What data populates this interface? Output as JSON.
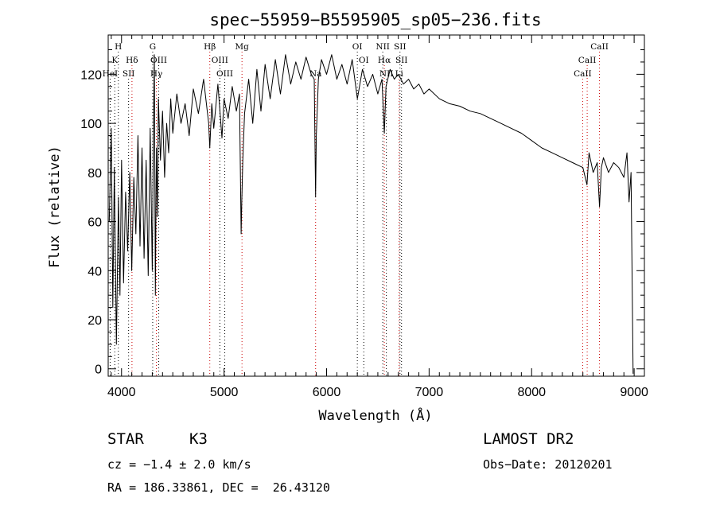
{
  "header": {
    "title": "spec−55959−B5595905_sp05−236.fits"
  },
  "info": {
    "object_class": "STAR",
    "subclass": "K3",
    "survey": "LAMOST DR2",
    "cz": "cz = −1.4 ± 2.0 km/s",
    "obs_date": "Obs−Date: 20120201",
    "coords": "RA = 186.33861, DEC =  26.43120"
  },
  "chart_data": {
    "type": "line",
    "title": "spec−55959−B5595905_sp05−236.fits",
    "xlabel": "Wavelength (Å)",
    "ylabel": "Flux (relative)",
    "xlim": [
      3870,
      9100
    ],
    "ylim": [
      -3,
      136
    ],
    "xticks": [
      4000,
      5000,
      6000,
      7000,
      8000,
      9000
    ],
    "yticks": [
      0,
      20,
      40,
      60,
      80,
      100,
      120
    ],
    "grid": false,
    "series": [
      {
        "x": [
          3880,
          3900,
          3915,
          3930,
          3950,
          3970,
          3985,
          4000,
          4020,
          4040,
          4060,
          4080,
          4100,
          4120,
          4140,
          4160,
          4180,
          4200,
          4220,
          4240,
          4260,
          4280,
          4300,
          4310,
          4320,
          4330,
          4340,
          4350,
          4360,
          4380,
          4400,
          4420,
          4440,
          4460,
          4480,
          4500,
          4540,
          4580,
          4620,
          4660,
          4700,
          4750,
          4800,
          4850,
          4861,
          4880,
          4900,
          4940,
          4980,
          5000,
          5040,
          5080,
          5120,
          5150,
          5167,
          5173,
          5183,
          5200,
          5240,
          5280,
          5320,
          5360,
          5400,
          5450,
          5500,
          5550,
          5600,
          5650,
          5700,
          5750,
          5800,
          5850,
          5880,
          5893,
          5900,
          5920,
          5950,
          6000,
          6050,
          6100,
          6150,
          6200,
          6250,
          6300,
          6350,
          6400,
          6450,
          6500,
          6540,
          6563,
          6580,
          6620,
          6660,
          6700,
          6750,
          6800,
          6850,
          6900,
          6950,
          7000,
          7100,
          7200,
          7300,
          7400,
          7500,
          7600,
          7700,
          7800,
          7900,
          8000,
          8100,
          8200,
          8300,
          8400,
          8500,
          8540,
          8560,
          8600,
          8640,
          8662,
          8680,
          8700,
          8750,
          8800,
          8850,
          8900,
          8930,
          8950,
          8970,
          8990
        ],
        "y": [
          60,
          98,
          25,
          82,
          10,
          70,
          30,
          85,
          35,
          72,
          48,
          80,
          40,
          78,
          55,
          95,
          50,
          90,
          45,
          85,
          38,
          98,
          40,
          92,
          128,
          30,
          90,
          62,
          110,
          85,
          105,
          78,
          100,
          88,
          110,
          96,
          112,
          100,
          108,
          95,
          114,
          104,
          118,
          100,
          90,
          108,
          98,
          116,
          94,
          110,
          102,
          115,
          105,
          112,
          55,
          68,
          85,
          104,
          118,
          100,
          122,
          105,
          124,
          110,
          126,
          112,
          128,
          116,
          125,
          118,
          127,
          120,
          118,
          70,
          95,
          118,
          126,
          120,
          128,
          118,
          124,
          116,
          126,
          110,
          122,
          115,
          120,
          112,
          118,
          96,
          115,
          122,
          118,
          120,
          116,
          118,
          114,
          116,
          112,
          114,
          110,
          108,
          107,
          105,
          104,
          102,
          100,
          98,
          96,
          93,
          90,
          88,
          86,
          84,
          82,
          75,
          88,
          80,
          84,
          66,
          82,
          86,
          80,
          84,
          82,
          78,
          88,
          68,
          80,
          -2
        ]
      }
    ],
    "spectral_lines": [
      {
        "label": "H",
        "x": 3969,
        "row": 0,
        "color": "#000"
      },
      {
        "label": "K",
        "x": 3934,
        "row": 1,
        "color": "#000"
      },
      {
        "label": "HeI",
        "x": 3889,
        "row": 2,
        "color": "#000"
      },
      {
        "label": "Hδ",
        "x": 4102,
        "row": 1,
        "color": "#c00"
      },
      {
        "label": "SII",
        "x": 4069,
        "row": 2,
        "color": "#000"
      },
      {
        "label": "G",
        "x": 4304,
        "row": 0,
        "color": "#000"
      },
      {
        "label": "OIII",
        "x": 4363,
        "row": 1,
        "color": "#000"
      },
      {
        "label": "Hγ",
        "x": 4340,
        "row": 2,
        "color": "#c00"
      },
      {
        "label": "Hβ",
        "x": 4861,
        "row": 0,
        "color": "#c00"
      },
      {
        "label": "OIII",
        "x": 4959,
        "row": 1,
        "color": "#000"
      },
      {
        "label": "OIII",
        "x": 5007,
        "row": 2,
        "color": "#000"
      },
      {
        "label": "Mg",
        "x": 5175,
        "row": 0,
        "color": "#c00"
      },
      {
        "label": "Na",
        "x": 5893,
        "row": 2,
        "color": "#c00"
      },
      {
        "label": "OI",
        "x": 6300,
        "row": 0,
        "color": "#000"
      },
      {
        "label": "OI",
        "x": 6363,
        "row": 1,
        "color": "#000"
      },
      {
        "label": "NII",
        "x": 6548,
        "row": 0,
        "color": "#000"
      },
      {
        "label": "SII",
        "x": 6716,
        "row": 0,
        "color": "#000"
      },
      {
        "label": "Hα",
        "x": 6563,
        "row": 1,
        "color": "#c00"
      },
      {
        "label": "SII",
        "x": 6731,
        "row": 1,
        "color": "#000"
      },
      {
        "label": "NII",
        "x": 6583,
        "row": 2,
        "color": "#000"
      },
      {
        "label": "Li",
        "x": 6708,
        "row": 2,
        "color": "#c00"
      },
      {
        "label": "CaII",
        "x": 8662,
        "row": 0,
        "color": "#c00"
      },
      {
        "label": "CaII",
        "x": 8542,
        "row": 1,
        "color": "#c00"
      },
      {
        "label": "CaII",
        "x": 8498,
        "row": 2,
        "color": "#c00"
      }
    ]
  }
}
